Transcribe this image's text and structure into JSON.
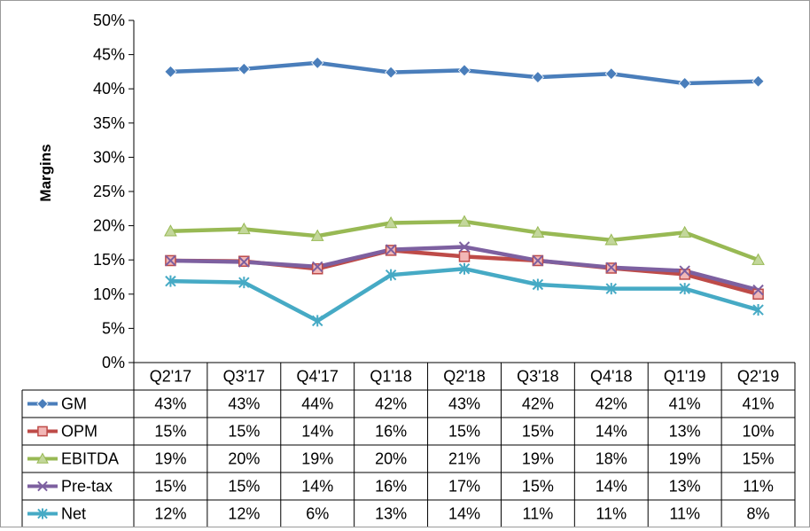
{
  "chart_data": {
    "type": "line",
    "title": "",
    "xlabel": "",
    "ylabel": "Margins",
    "ylim": [
      0,
      0.5
    ],
    "yticks": [
      "0%",
      "5%",
      "10%",
      "15%",
      "20%",
      "25%",
      "30%",
      "35%",
      "40%",
      "45%",
      "50%"
    ],
    "grid": false,
    "legend": "data-table",
    "categories": [
      "Q2'17",
      "Q3'17",
      "Q4'17",
      "Q1'18",
      "Q2'18",
      "Q3'18",
      "Q4'18",
      "Q1'19",
      "Q2'19"
    ],
    "series": [
      {
        "name": "GM",
        "color": "#4a7ebb",
        "marker": "diamond",
        "values": [
          0.425,
          0.429,
          0.438,
          0.424,
          0.427,
          0.417,
          0.422,
          0.408,
          0.411
        ],
        "labels": [
          "43%",
          "43%",
          "44%",
          "42%",
          "43%",
          "42%",
          "42%",
          "41%",
          "41%"
        ]
      },
      {
        "name": "OPM",
        "color": "#be4b48",
        "marker": "square",
        "values": [
          0.149,
          0.148,
          0.137,
          0.164,
          0.155,
          0.149,
          0.138,
          0.129,
          0.1
        ],
        "labels": [
          "15%",
          "15%",
          "14%",
          "16%",
          "15%",
          "15%",
          "14%",
          "13%",
          "10%"
        ]
      },
      {
        "name": "EBITDA",
        "color": "#98b954",
        "marker": "triangle",
        "values": [
          0.192,
          0.195,
          0.185,
          0.204,
          0.206,
          0.19,
          0.179,
          0.19,
          0.15
        ],
        "labels": [
          "19%",
          "20%",
          "19%",
          "20%",
          "21%",
          "19%",
          "18%",
          "19%",
          "15%"
        ]
      },
      {
        "name": "Pre-tax",
        "color": "#7d60a0",
        "marker": "x",
        "values": [
          0.149,
          0.147,
          0.14,
          0.165,
          0.169,
          0.149,
          0.139,
          0.134,
          0.106
        ],
        "labels": [
          "15%",
          "15%",
          "14%",
          "16%",
          "17%",
          "15%",
          "14%",
          "13%",
          "11%"
        ]
      },
      {
        "name": "Net",
        "color": "#46aac5",
        "marker": "star",
        "values": [
          0.119,
          0.117,
          0.061,
          0.128,
          0.137,
          0.114,
          0.108,
          0.108,
          0.077
        ],
        "labels": [
          "12%",
          "12%",
          "6%",
          "13%",
          "14%",
          "11%",
          "11%",
          "11%",
          "8%"
        ]
      }
    ]
  }
}
